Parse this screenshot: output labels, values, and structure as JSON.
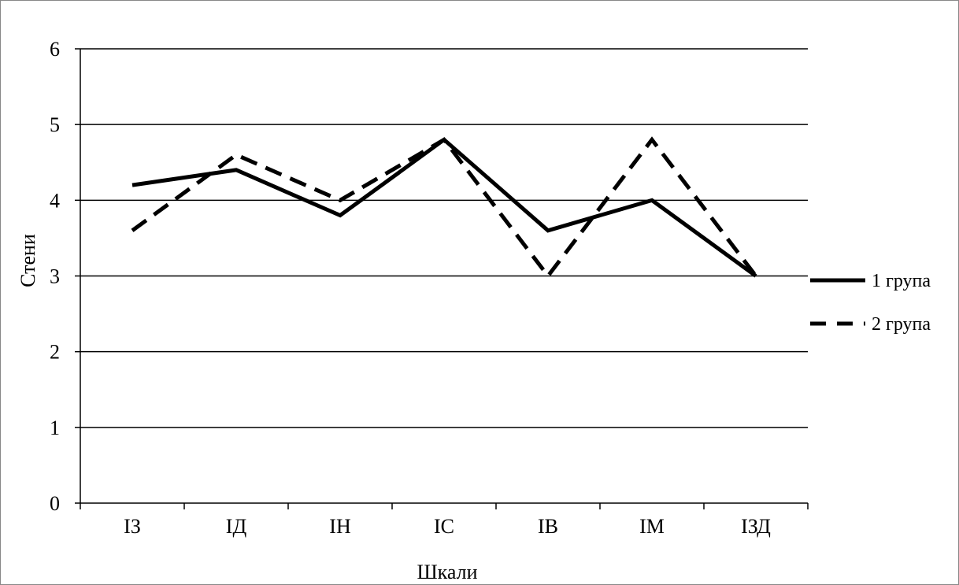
{
  "chart_data": {
    "type": "line",
    "categories": [
      "ІЗ",
      "ІД",
      "ІН",
      "ІС",
      "ІВ",
      "ІМ",
      "ІЗД"
    ],
    "series": [
      {
        "name": "1 група",
        "values": [
          4.2,
          4.4,
          3.8,
          4.8,
          3.6,
          4.0,
          3.0
        ],
        "style": "solid",
        "color": "#000000"
      },
      {
        "name": "2 група",
        "values": [
          3.6,
          4.6,
          4.0,
          4.8,
          3.0,
          4.8,
          3.0
        ],
        "style": "dashed",
        "color": "#000000"
      }
    ],
    "title": "",
    "xlabel": "Шкали",
    "ylabel": "Стени",
    "ylim": [
      0,
      6
    ],
    "yticks": [
      "0",
      "1",
      "2",
      "3",
      "4",
      "5",
      "6"
    ],
    "grid": "horizontal",
    "legend_position": "right"
  }
}
